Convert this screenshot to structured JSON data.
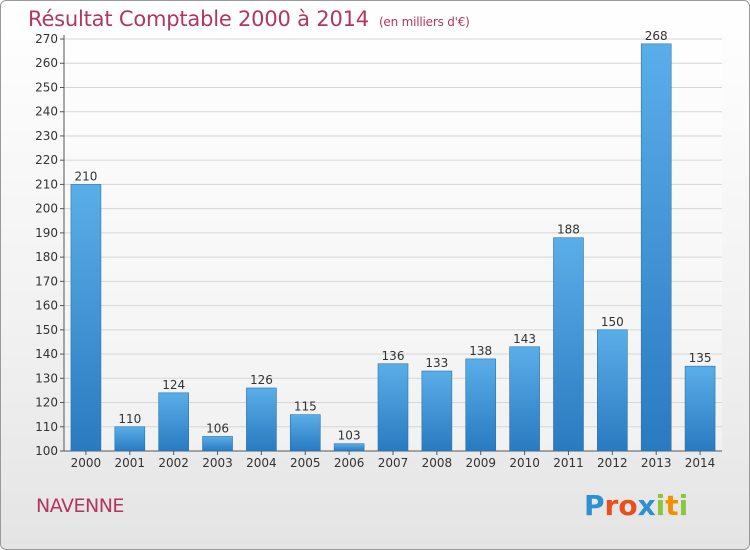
{
  "title": "Résultat Comptable 2000 à 2014",
  "subtitle": "(en milliers d'€)",
  "commune": "NAVENNE",
  "logo": {
    "letters": [
      "P",
      "r",
      "o",
      "x",
      "i",
      "t",
      "i"
    ],
    "colors": [
      "#2f8fd0",
      "#e94e1b",
      "#e94e1b",
      "#2f8fd0",
      "#8cc63f",
      "#f29100",
      "#8cc63f"
    ]
  },
  "colors": {
    "bar_light": "#5aaee8",
    "bar_dark": "#2a7ac0",
    "title": "#b2365f"
  },
  "chart_data": {
    "type": "bar",
    "title": "Résultat Comptable 2000 à 2014",
    "subtitle": "(en milliers d'€)",
    "xlabel": "",
    "ylabel": "",
    "categories": [
      "2000",
      "2001",
      "2002",
      "2003",
      "2004",
      "2005",
      "2006",
      "2007",
      "2008",
      "2009",
      "2010",
      "2011",
      "2012",
      "2013",
      "2014"
    ],
    "values": [
      210,
      110,
      124,
      106,
      126,
      115,
      103,
      136,
      133,
      138,
      143,
      188,
      150,
      268,
      135
    ],
    "ylim": [
      100,
      270
    ],
    "yticks": [
      100,
      110,
      120,
      130,
      140,
      150,
      160,
      170,
      180,
      190,
      200,
      210,
      220,
      230,
      240,
      250,
      260,
      270
    ],
    "grid": true,
    "data_labels": true
  }
}
